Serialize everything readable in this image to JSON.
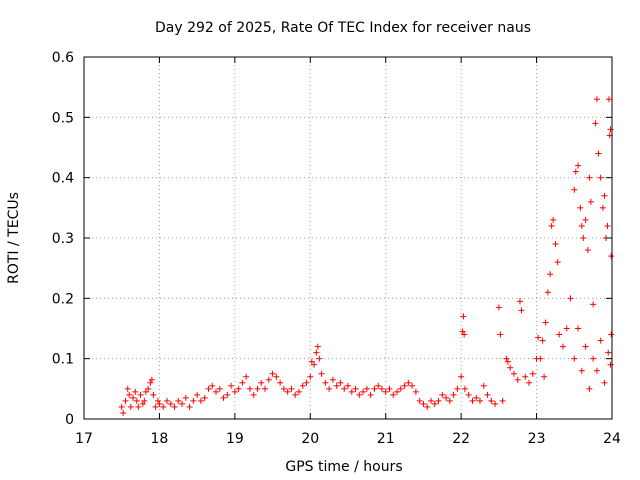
{
  "chart_data": {
    "type": "scatter",
    "title": "Day 292 of 2025, Rate Of TEC Index for receiver naus",
    "xlabel": "GPS time / hours",
    "ylabel": "ROTI / TECUs",
    "xlim": [
      17,
      24
    ],
    "ylim": [
      0,
      0.6
    ],
    "xticks": [
      "17",
      "18",
      "19",
      "20",
      "21",
      "22",
      "23",
      "24"
    ],
    "yticks": [
      "0",
      "0.1",
      "0.2",
      "0.3",
      "0.4",
      "0.5",
      "0.6"
    ],
    "grid": true,
    "marker": "plus",
    "color": "#ff0000",
    "series": [
      {
        "points": [
          [
            17.5,
            0.02
          ],
          [
            17.52,
            0.01
          ],
          [
            17.55,
            0.03
          ],
          [
            17.58,
            0.05
          ],
          [
            17.6,
            0.04
          ],
          [
            17.62,
            0.02
          ],
          [
            17.65,
            0.035
          ],
          [
            17.68,
            0.045
          ],
          [
            17.7,
            0.03
          ],
          [
            17.72,
            0.02
          ],
          [
            17.75,
            0.04
          ],
          [
            17.78,
            0.025
          ],
          [
            17.8,
            0.03
          ],
          [
            17.82,
            0.045
          ],
          [
            17.85,
            0.05
          ],
          [
            17.88,
            0.06
          ],
          [
            17.9,
            0.065
          ],
          [
            17.92,
            0.04
          ],
          [
            17.95,
            0.02
          ],
          [
            17.98,
            0.03
          ],
          [
            18.0,
            0.025
          ],
          [
            18.05,
            0.02
          ],
          [
            18.1,
            0.03
          ],
          [
            18.15,
            0.025
          ],
          [
            18.2,
            0.02
          ],
          [
            18.25,
            0.03
          ],
          [
            18.3,
            0.025
          ],
          [
            18.35,
            0.035
          ],
          [
            18.4,
            0.02
          ],
          [
            18.45,
            0.03
          ],
          [
            18.5,
            0.04
          ],
          [
            18.55,
            0.03
          ],
          [
            18.6,
            0.035
          ],
          [
            18.65,
            0.05
          ],
          [
            18.7,
            0.055
          ],
          [
            18.75,
            0.045
          ],
          [
            18.8,
            0.05
          ],
          [
            18.85,
            0.035
          ],
          [
            18.9,
            0.04
          ],
          [
            18.95,
            0.055
          ],
          [
            19.0,
            0.045
          ],
          [
            19.05,
            0.05
          ],
          [
            19.1,
            0.06
          ],
          [
            19.15,
            0.07
          ],
          [
            19.2,
            0.05
          ],
          [
            19.25,
            0.04
          ],
          [
            19.3,
            0.05
          ],
          [
            19.35,
            0.06
          ],
          [
            19.4,
            0.05
          ],
          [
            19.45,
            0.065
          ],
          [
            19.5,
            0.075
          ],
          [
            19.55,
            0.07
          ],
          [
            19.6,
            0.06
          ],
          [
            19.65,
            0.05
          ],
          [
            19.7,
            0.045
          ],
          [
            19.75,
            0.05
          ],
          [
            19.8,
            0.04
          ],
          [
            19.85,
            0.045
          ],
          [
            19.9,
            0.055
          ],
          [
            19.95,
            0.06
          ],
          [
            20.0,
            0.07
          ],
          [
            20.02,
            0.095
          ],
          [
            20.05,
            0.09
          ],
          [
            20.08,
            0.11
          ],
          [
            20.1,
            0.12
          ],
          [
            20.12,
            0.1
          ],
          [
            20.15,
            0.075
          ],
          [
            20.2,
            0.06
          ],
          [
            20.25,
            0.05
          ],
          [
            20.3,
            0.065
          ],
          [
            20.35,
            0.055
          ],
          [
            20.4,
            0.06
          ],
          [
            20.45,
            0.05
          ],
          [
            20.5,
            0.055
          ],
          [
            20.55,
            0.045
          ],
          [
            20.6,
            0.05
          ],
          [
            20.65,
            0.04
          ],
          [
            20.7,
            0.045
          ],
          [
            20.75,
            0.05
          ],
          [
            20.8,
            0.04
          ],
          [
            20.85,
            0.05
          ],
          [
            20.9,
            0.055
          ],
          [
            20.95,
            0.05
          ],
          [
            21.0,
            0.045
          ],
          [
            21.05,
            0.05
          ],
          [
            21.1,
            0.04
          ],
          [
            21.15,
            0.045
          ],
          [
            21.2,
            0.05
          ],
          [
            21.25,
            0.055
          ],
          [
            21.3,
            0.06
          ],
          [
            21.35,
            0.055
          ],
          [
            21.4,
            0.045
          ],
          [
            21.45,
            0.03
          ],
          [
            21.5,
            0.025
          ],
          [
            21.55,
            0.02
          ],
          [
            21.6,
            0.03
          ],
          [
            21.65,
            0.025
          ],
          [
            21.7,
            0.03
          ],
          [
            21.75,
            0.04
          ],
          [
            21.8,
            0.035
          ],
          [
            21.85,
            0.03
          ],
          [
            21.9,
            0.04
          ],
          [
            21.95,
            0.05
          ],
          [
            22.0,
            0.07
          ],
          [
            22.02,
            0.145
          ],
          [
            22.04,
            0.14
          ],
          [
            22.03,
            0.17
          ],
          [
            22.05,
            0.05
          ],
          [
            22.1,
            0.04
          ],
          [
            22.15,
            0.03
          ],
          [
            22.2,
            0.035
          ],
          [
            22.25,
            0.03
          ],
          [
            22.3,
            0.055
          ],
          [
            22.35,
            0.04
          ],
          [
            22.4,
            0.03
          ],
          [
            22.45,
            0.025
          ],
          [
            22.5,
            0.185
          ],
          [
            22.52,
            0.14
          ],
          [
            22.55,
            0.03
          ],
          [
            22.6,
            0.1
          ],
          [
            22.62,
            0.095
          ],
          [
            22.65,
            0.085
          ],
          [
            22.7,
            0.075
          ],
          [
            22.75,
            0.065
          ],
          [
            22.78,
            0.195
          ],
          [
            22.8,
            0.18
          ],
          [
            22.85,
            0.07
          ],
          [
            22.9,
            0.06
          ],
          [
            22.95,
            0.075
          ],
          [
            23.0,
            0.1
          ],
          [
            23.02,
            0.135
          ],
          [
            23.05,
            0.1
          ],
          [
            23.08,
            0.13
          ],
          [
            23.1,
            0.07
          ],
          [
            23.12,
            0.16
          ],
          [
            23.15,
            0.21
          ],
          [
            23.18,
            0.24
          ],
          [
            23.2,
            0.32
          ],
          [
            23.22,
            0.33
          ],
          [
            23.25,
            0.29
          ],
          [
            23.28,
            0.26
          ],
          [
            23.3,
            0.14
          ],
          [
            23.35,
            0.12
          ],
          [
            23.4,
            0.15
          ],
          [
            23.45,
            0.2
          ],
          [
            23.5,
            0.38
          ],
          [
            23.52,
            0.41
          ],
          [
            23.55,
            0.42
          ],
          [
            23.58,
            0.35
          ],
          [
            23.6,
            0.32
          ],
          [
            23.62,
            0.3
          ],
          [
            23.65,
            0.33
          ],
          [
            23.68,
            0.28
          ],
          [
            23.7,
            0.4
          ],
          [
            23.72,
            0.36
          ],
          [
            23.75,
            0.19
          ],
          [
            23.78,
            0.49
          ],
          [
            23.8,
            0.53
          ],
          [
            23.82,
            0.44
          ],
          [
            23.85,
            0.4
          ],
          [
            23.88,
            0.35
          ],
          [
            23.9,
            0.37
          ],
          [
            23.92,
            0.3
          ],
          [
            23.94,
            0.32
          ],
          [
            23.96,
            0.53
          ],
          [
            23.97,
            0.47
          ],
          [
            23.98,
            0.48
          ],
          [
            23.99,
            0.27
          ],
          [
            23.5,
            0.1
          ],
          [
            23.55,
            0.15
          ],
          [
            23.6,
            0.08
          ],
          [
            23.65,
            0.12
          ],
          [
            23.7,
            0.05
          ],
          [
            23.75,
            0.1
          ],
          [
            23.8,
            0.08
          ],
          [
            23.85,
            0.13
          ],
          [
            23.9,
            0.06
          ],
          [
            23.95,
            0.11
          ],
          [
            23.98,
            0.09
          ],
          [
            23.99,
            0.14
          ]
        ]
      }
    ]
  }
}
